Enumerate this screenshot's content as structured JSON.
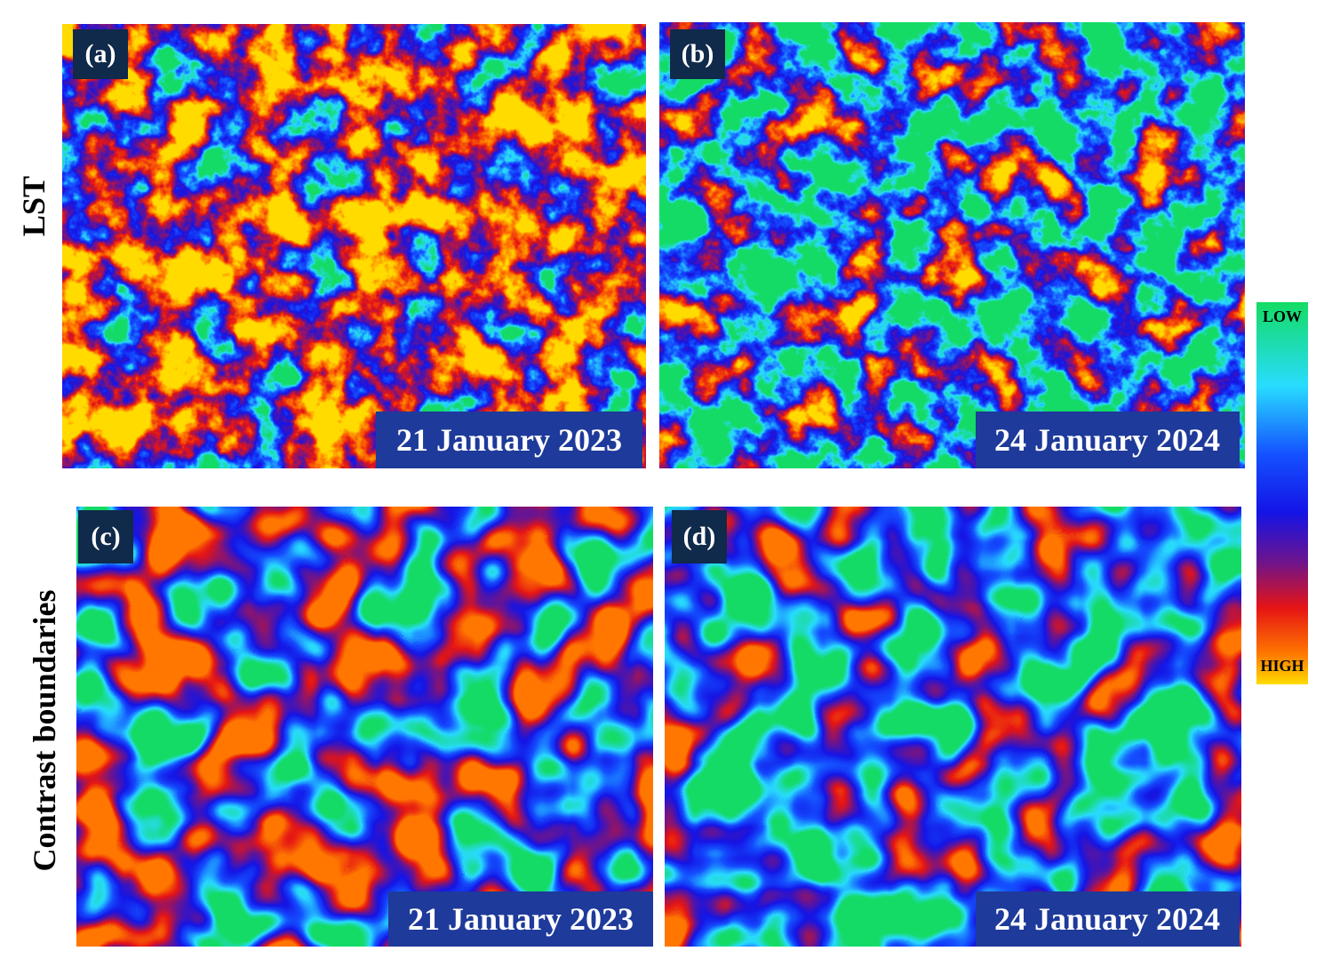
{
  "row_labels": [
    "LST",
    "Contrast boundaries"
  ],
  "panels": [
    {
      "label": "(a)",
      "date": "21 January 2023"
    },
    {
      "label": "(b)",
      "date": "24 January 2024"
    },
    {
      "label": "(c)",
      "date": "21 January 2023"
    },
    {
      "label": "(d)",
      "date": "24 January 2024"
    }
  ],
  "colorbar": {
    "low_label": "LOW",
    "high_label": "HIGH"
  }
}
